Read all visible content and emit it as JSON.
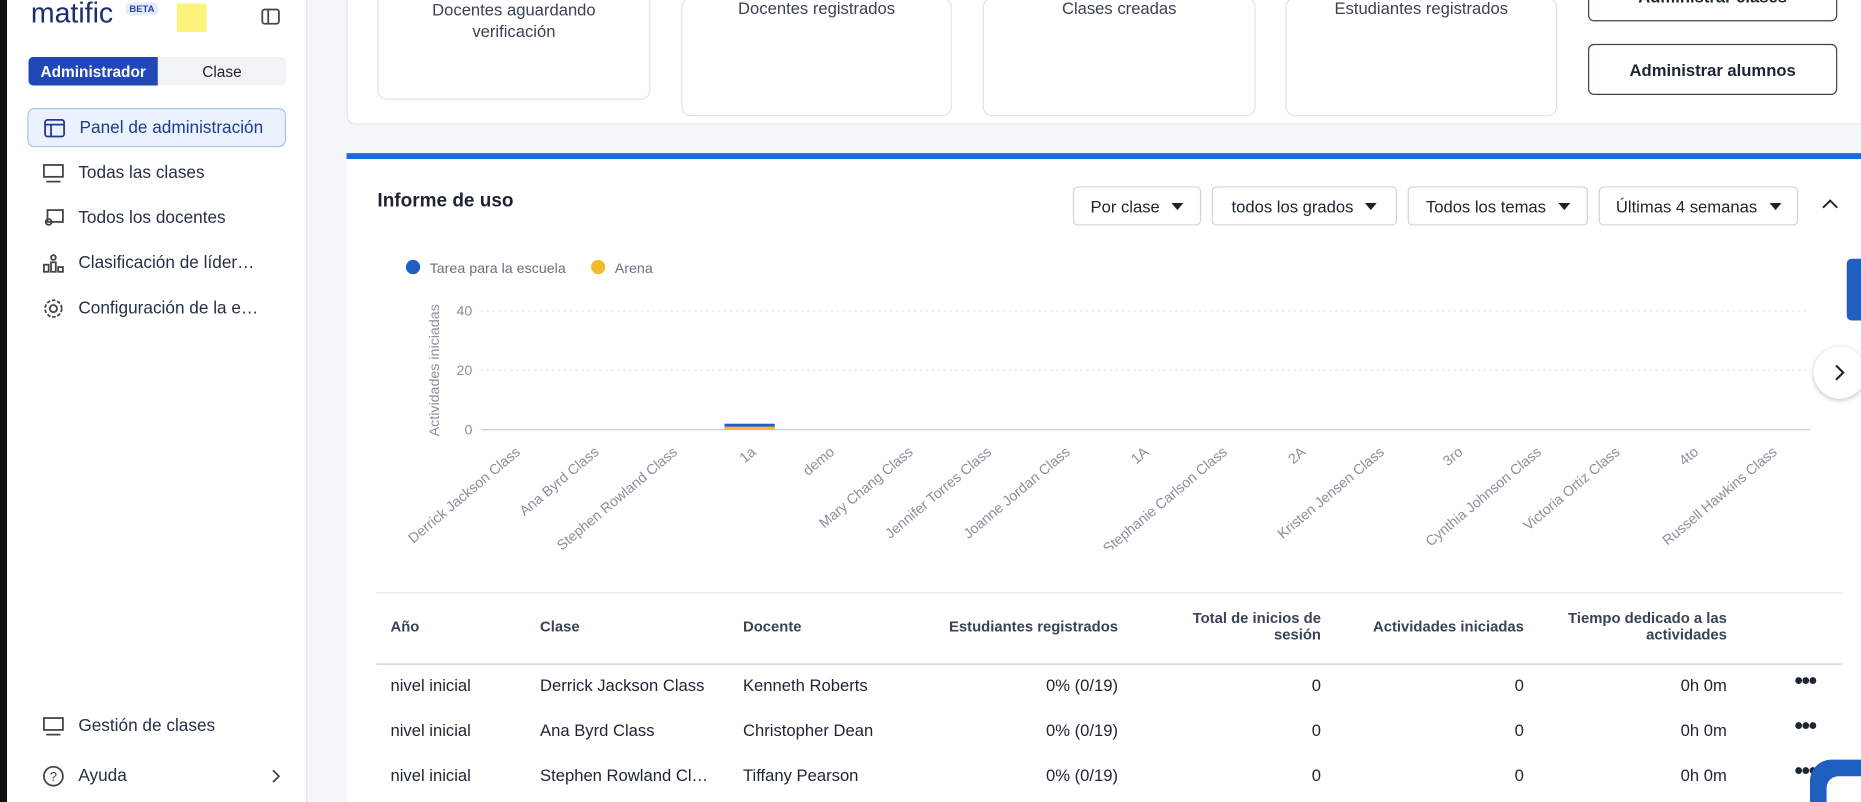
{
  "sidebar": {
    "logo": "matific",
    "badge": "BETA",
    "toggle": [
      "Administrador",
      "Clase"
    ],
    "nav": [
      "Panel de administración",
      "Todas las clases",
      "Todos los docentes",
      "Clasificación de líder…",
      "Configuración de la e…"
    ],
    "footer_nav": [
      "Gestión de clases",
      "Ayuda"
    ]
  },
  "stats": {
    "cards": [
      "Docentes aguardando verificación",
      "Docentes registrados",
      "Clases creadas",
      "Estudiantes registrados"
    ],
    "buttons": [
      "Administrar clases",
      "Administrar alumnos"
    ]
  },
  "report": {
    "title": "Informe de uso",
    "filters": [
      "Por clase",
      "todos los grados",
      "Todos los temas",
      "Últimas 4 semanas"
    ]
  },
  "chart_data": {
    "type": "bar",
    "stacked": true,
    "y_label": "Actividades iniciadas",
    "categories": [
      "Derrick Jackson Class",
      "Ana Byrd Class",
      "Stephen Rowland Class",
      "1a",
      "demo",
      "Mary Chang Class",
      "Jennifer Torres Class",
      "Joanne Jordan Class",
      "1A",
      "Stephanie Carlson Class",
      "2A",
      "Kristen Jensen Class",
      "3ro",
      "Cynthia Johnson Class",
      "Victoria Ortiz Class",
      "4to",
      "Russell Hawkins Class"
    ],
    "series": [
      {
        "name": "Tarea para la escuela",
        "color": "#1f5fbf",
        "values": [
          0,
          0,
          0,
          1,
          0,
          0,
          0,
          0,
          0,
          0,
          0,
          0,
          0,
          0,
          0,
          0,
          0
        ]
      },
      {
        "name": "Arena",
        "color": "#f5b82e",
        "values": [
          0,
          0,
          0,
          1,
          0,
          0,
          0,
          0,
          0,
          0,
          0,
          0,
          0,
          0,
          0,
          0,
          0
        ]
      }
    ],
    "ylim": [
      0,
      40
    ],
    "yticks": [
      0,
      20,
      40
    ],
    "grid": true
  },
  "table": {
    "headers": [
      "Año",
      "Clase",
      "Docente",
      "Estudiantes registrados",
      "Total de inicios de sesión",
      "Actividades iniciadas",
      "Tiempo dedicado a las actividades"
    ],
    "rows": [
      [
        "nivel inicial",
        "Derrick Jackson Class",
        "Kenneth Roberts",
        "0% (0/19)",
        "0",
        "0",
        "0h 0m"
      ],
      [
        "nivel inicial",
        "Ana Byrd Class",
        "Christopher Dean",
        "0% (0/19)",
        "0",
        "0",
        "0h 0m"
      ],
      [
        "nivel inicial",
        "Stephen Rowland Cl…",
        "Tiffany Pearson",
        "0% (0/19)",
        "0",
        "0",
        "0h 0m"
      ]
    ]
  }
}
